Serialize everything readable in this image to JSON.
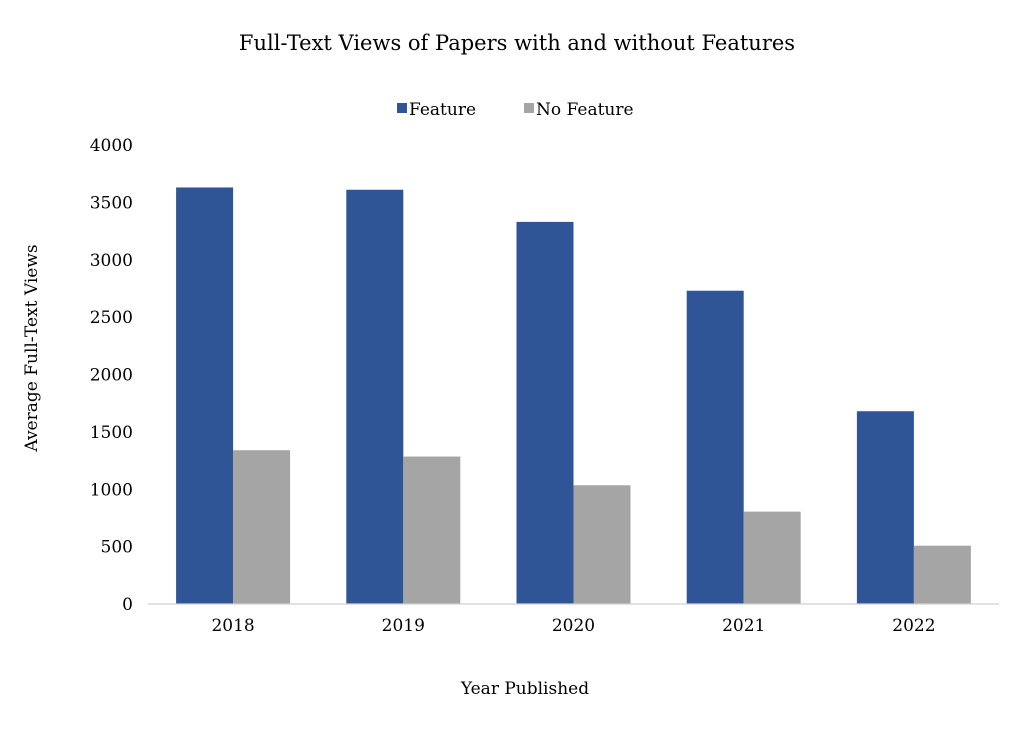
{
  "chart_data": {
    "type": "bar",
    "title": "Full-Text Views of Papers with and without Features",
    "xlabel": "Year Published",
    "ylabel": "Average Full-Text Views",
    "categories": [
      "2018",
      "2019",
      "2020",
      "2021",
      "2022"
    ],
    "series": [
      {
        "name": "Feature",
        "color": "#2F5597",
        "values": [
          3630,
          3610,
          3330,
          2730,
          1680
        ]
      },
      {
        "name": "No Feature",
        "color": "#A5A5A5",
        "values": [
          1340,
          1285,
          1035,
          805,
          508
        ]
      }
    ],
    "ylim": [
      0,
      4000
    ],
    "yticks": [
      "0",
      "500",
      "1000",
      "1500",
      "2000",
      "2500",
      "3000",
      "3500",
      "4000"
    ],
    "grid": false,
    "legend_position": "top-center"
  }
}
